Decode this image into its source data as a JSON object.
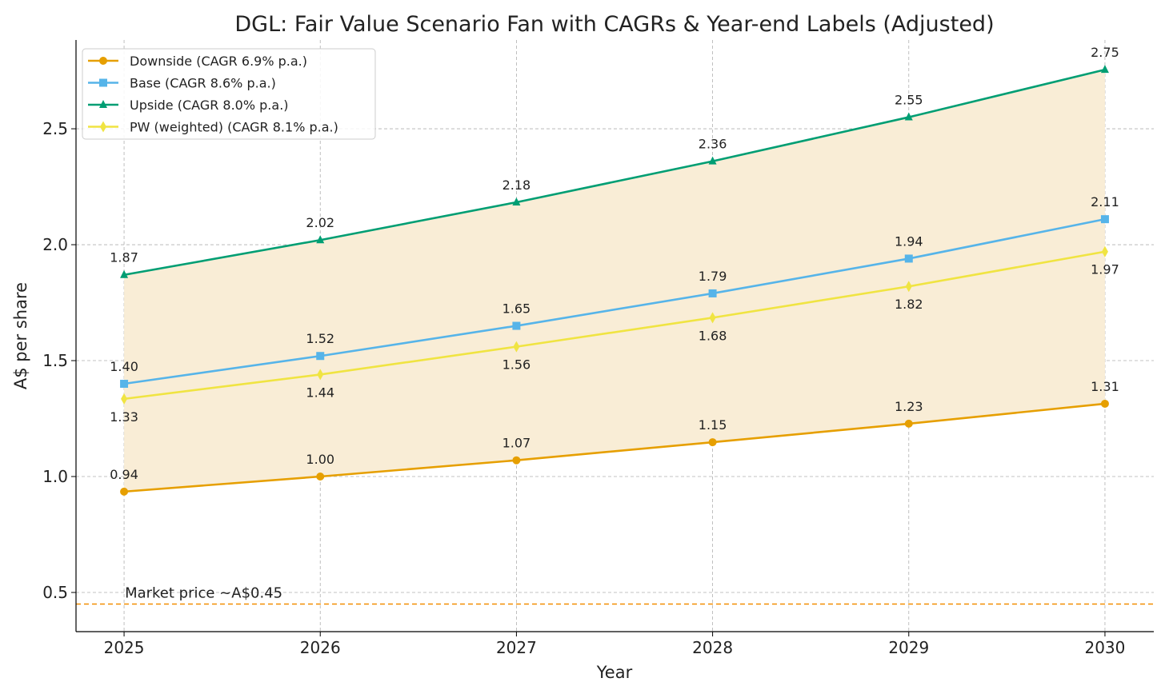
{
  "chart_data": {
    "type": "line",
    "title": "DGL: Fair Value Scenario Fan with CAGRs & Year-end Labels (Adjusted)",
    "xlabel": "Year",
    "ylabel": "A$ per share",
    "x": [
      2025,
      2026,
      2027,
      2028,
      2029,
      2030
    ],
    "xlim": [
      2024.755,
      2030.249
    ],
    "ylim": [
      0.331,
      2.883
    ],
    "yticks": [
      0.5,
      1.0,
      1.5,
      2.0,
      2.5
    ],
    "ytick_labels": [
      "0.5",
      "1.0",
      "1.5",
      "2.0",
      "2.5"
    ],
    "xtick_labels": [
      "2025",
      "2026",
      "2027",
      "2028",
      "2029",
      "2030"
    ],
    "grid": true,
    "legend_position": "top-left",
    "fill_between": {
      "lower": "Downside",
      "upper": "Upside",
      "color": "#F9EDD6"
    },
    "series": [
      {
        "name": "Downside (CAGR 6.9% p.a.)",
        "key": "Downside",
        "color": "#E69F00",
        "marker": "circle",
        "label_pos": "above",
        "values": [
          0.935,
          1.0,
          1.07,
          1.148,
          1.228,
          1.314
        ],
        "labels": [
          "0.94",
          "1.00",
          "1.07",
          "1.15",
          "1.23",
          "1.31"
        ]
      },
      {
        "name": "Base (CAGR 8.6% p.a.)",
        "key": "Base",
        "color": "#56B4E9",
        "marker": "square",
        "label_pos": "above",
        "values": [
          1.4,
          1.52,
          1.65,
          1.79,
          1.94,
          2.11
        ],
        "labels": [
          "1.40",
          "1.52",
          "1.65",
          "1.79",
          "1.94",
          "2.11"
        ]
      },
      {
        "name": "Upside (CAGR 8.0% p.a.)",
        "key": "Upside",
        "color": "#009E73",
        "marker": "triangle",
        "label_pos": "above",
        "values": [
          1.87,
          2.02,
          2.183,
          2.36,
          2.55,
          2.755
        ],
        "labels": [
          "1.87",
          "2.02",
          "2.18",
          "2.36",
          "2.55",
          "2.75"
        ]
      },
      {
        "name": "PW (weighted) (CAGR 8.1% p.a.)",
        "key": "PW",
        "color": "#F0E442",
        "marker": "diamond",
        "label_pos": "below",
        "values": [
          1.335,
          1.44,
          1.56,
          1.685,
          1.82,
          1.97
        ],
        "labels": [
          "1.33",
          "1.44",
          "1.56",
          "1.68",
          "1.82",
          "1.97"
        ]
      }
    ],
    "reference_line": {
      "value": 0.45,
      "color": "#F28E00",
      "label": "Market price ~A$0.45"
    }
  }
}
